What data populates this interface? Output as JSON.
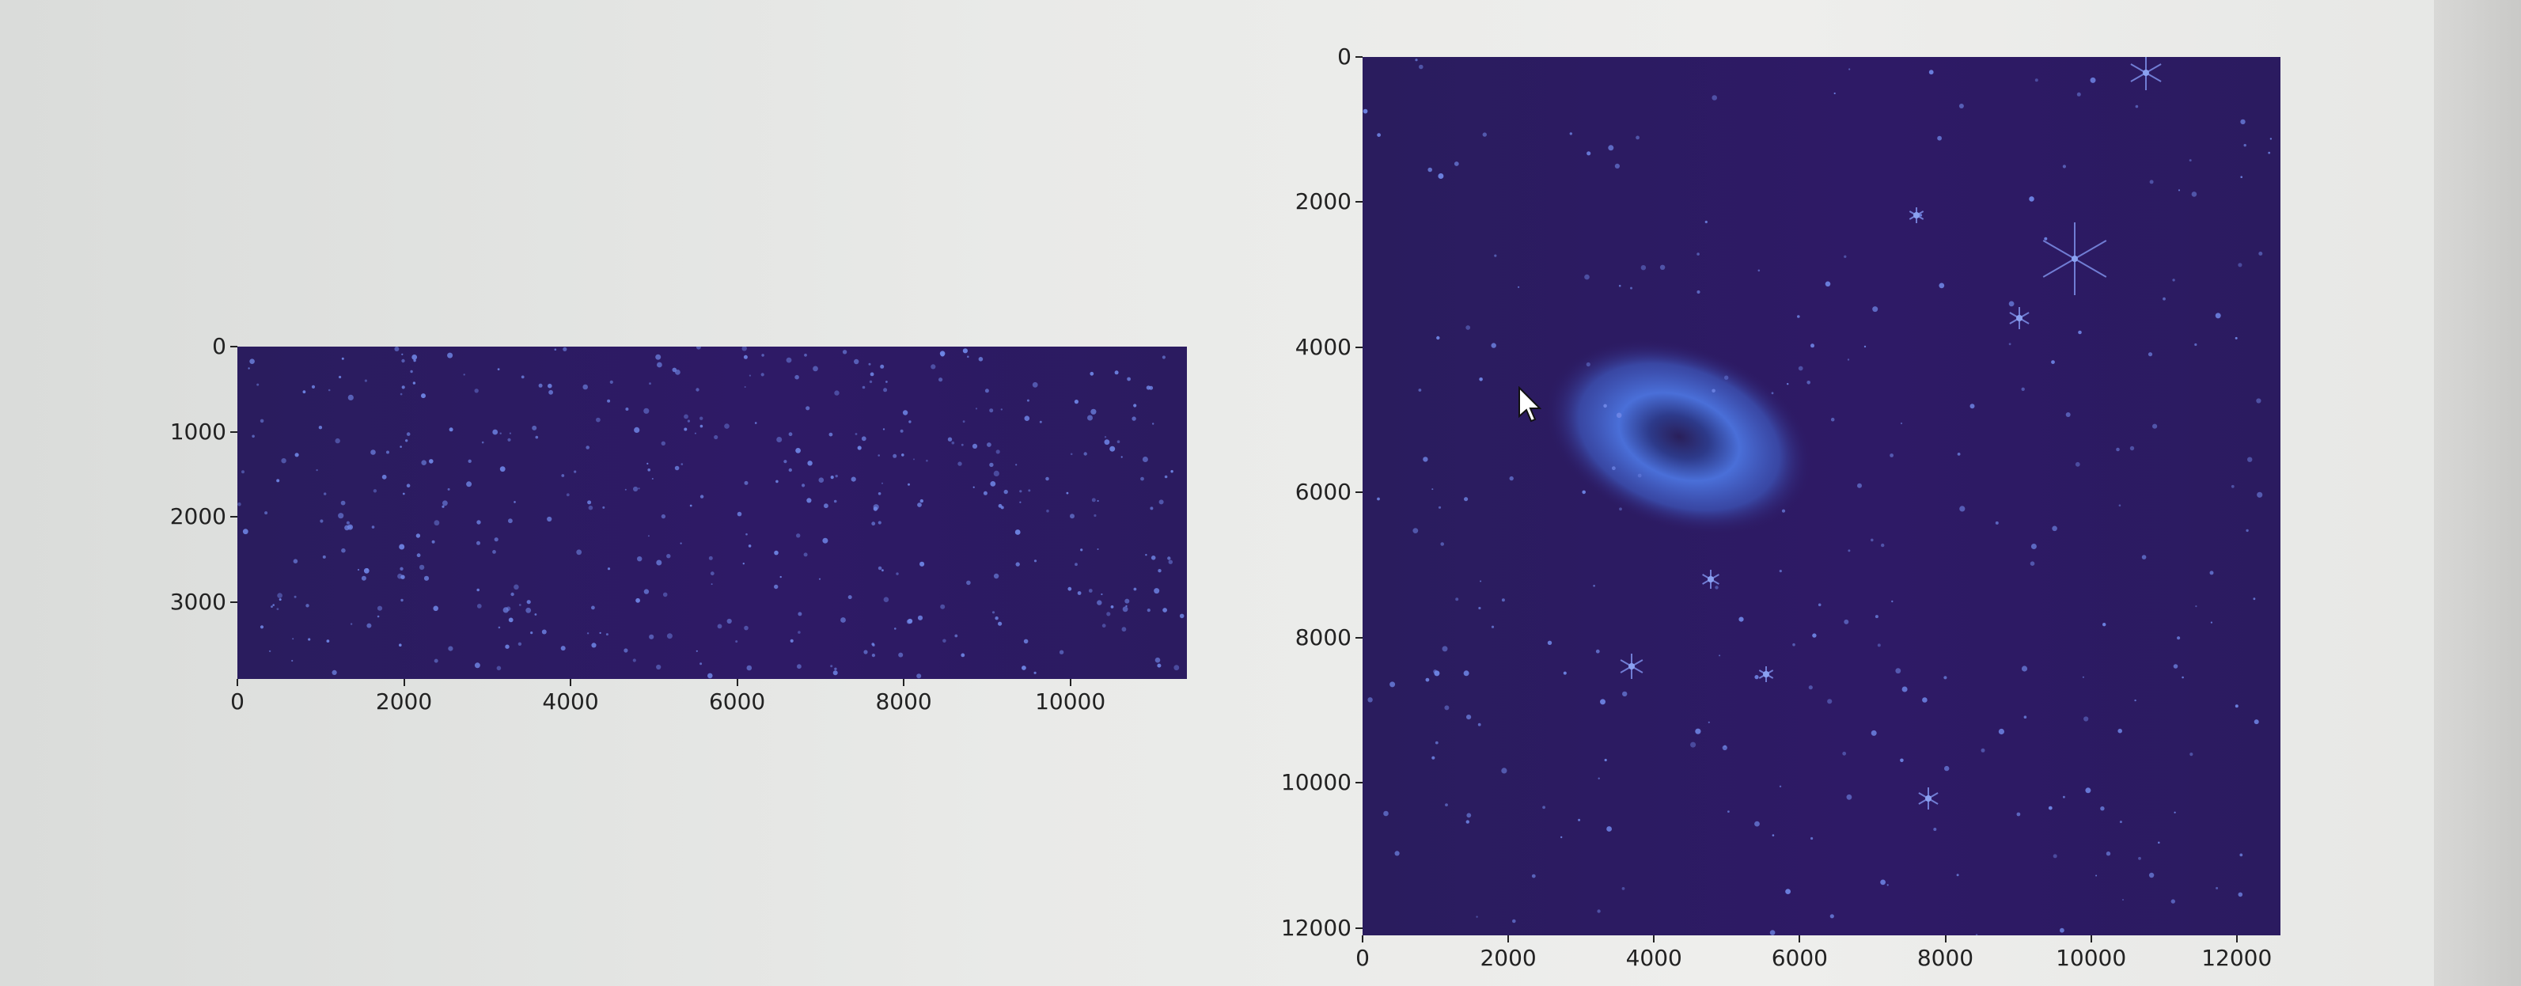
{
  "colors": {
    "image_bg": "#2e1a66",
    "star": "#6f86e6",
    "galaxy_outer": "#4a6fd8",
    "galaxy_core": "#2a1f5a",
    "tick_text": "#222222"
  },
  "chart_data": [
    {
      "type": "image",
      "title": "",
      "xlabel": "",
      "ylabel": "",
      "xlim": [
        0,
        11400
      ],
      "ylim": [
        3900,
        0
      ],
      "x_ticks": [
        "0",
        "2000",
        "4000",
        "6000",
        "8000",
        "10000"
      ],
      "y_ticks": [
        "0",
        "1000",
        "2000",
        "3000"
      ]
    },
    {
      "type": "image",
      "title": "",
      "xlabel": "",
      "ylabel": "",
      "xlim": [
        0,
        12600
      ],
      "ylim": [
        12100,
        0
      ],
      "x_ticks": [
        "0",
        "2000",
        "4000",
        "6000",
        "8000",
        "10000",
        "12000"
      ],
      "y_ticks": [
        "0",
        "2000",
        "4000",
        "6000",
        "8000",
        "10000",
        "12000"
      ]
    }
  ],
  "cursor": {
    "icon": "mouse-pointer-icon"
  }
}
